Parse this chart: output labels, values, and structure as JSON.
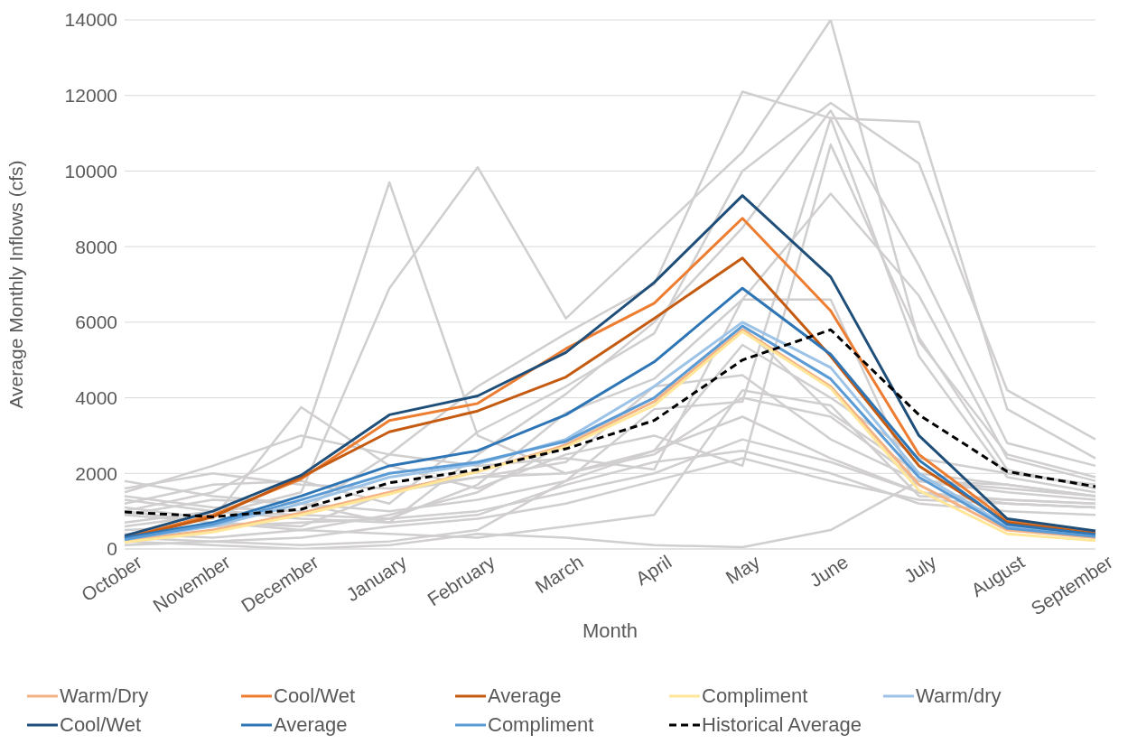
{
  "chart_data": {
    "type": "line",
    "xlabel": "Month",
    "ylabel": "Average Monthly Inflows (cfs)",
    "categories": [
      "October",
      "November",
      "December",
      "January",
      "February",
      "March",
      "April",
      "May",
      "June",
      "July",
      "August",
      "September"
    ],
    "ylim": [
      0,
      14000
    ],
    "yticks": [
      0,
      2000,
      4000,
      6000,
      8000,
      10000,
      12000,
      14000
    ],
    "grid": "y",
    "legend": "bottom",
    "marker": "none",
    "line_style": "solid",
    "series": [
      {
        "color": "#d0cece",
        "values": [
          1000,
          1500,
          2700,
          9700,
          3000,
          2000,
          2500,
          4000,
          3500,
          1800,
          1600,
          1400
        ]
      },
      {
        "color": "#d0cece",
        "values": [
          600,
          900,
          1500,
          6900,
          10100,
          6100,
          8300,
          10500,
          14000,
          5500,
          2500,
          1900
        ]
      },
      {
        "color": "#d0cece",
        "values": [
          1500,
          2200,
          3000,
          2500,
          4300,
          5700,
          7000,
          12100,
          11400,
          11300,
          3700,
          2400
        ]
      },
      {
        "color": "#d0cece",
        "values": [
          1200,
          1700,
          1800,
          1200,
          3100,
          4300,
          5700,
          10000,
          11800,
          10200,
          4200,
          2900
        ]
      },
      {
        "color": "#d0cece",
        "values": [
          900,
          1300,
          1200,
          700,
          2500,
          4100,
          6000,
          8500,
          11600,
          7500,
          2800,
          2200
        ]
      },
      {
        "color": "#d0cece",
        "values": [
          700,
          1000,
          900,
          800,
          1700,
          3600,
          4500,
          6600,
          9400,
          6700,
          2400,
          1800
        ]
      },
      {
        "color": "#d0cece",
        "values": [
          1100,
          800,
          3750,
          2200,
          1600,
          2500,
          3000,
          2200,
          10700,
          5600,
          2100,
          1600
        ]
      },
      {
        "color": "#d0cece",
        "values": [
          300,
          200,
          100,
          200,
          500,
          1800,
          3700,
          3900,
          11400,
          5100,
          1900,
          1500
        ]
      },
      {
        "color": "#d0cece",
        "values": [
          200,
          100,
          0,
          100,
          400,
          300,
          100,
          50,
          500,
          1800,
          1700,
          1400
        ]
      },
      {
        "color": "#d0cece",
        "values": [
          1800,
          1400,
          1200,
          1000,
          1300,
          1800,
          2600,
          3500,
          2400,
          1500,
          1200,
          1100
        ]
      },
      {
        "color": "#d0cece",
        "values": [
          1300,
          1000,
          800,
          700,
          900,
          1700,
          2300,
          2600,
          2000,
          1200,
          1000,
          900
        ]
      },
      {
        "color": "#d0cece",
        "values": [
          500,
          600,
          700,
          800,
          1000,
          1500,
          2000,
          2900,
          2300,
          1500,
          1300,
          1200
        ]
      },
      {
        "color": "#d0cece",
        "values": [
          100,
          200,
          300,
          600,
          800,
          1200,
          1800,
          2400,
          1800,
          1300,
          1200,
          1100
        ]
      },
      {
        "color": "#d0cece",
        "values": [
          400,
          300,
          500,
          400,
          300,
          600,
          900,
          4200,
          3800,
          1400,
          1300,
          1200
        ]
      },
      {
        "color": "#d0cece",
        "values": [
          1400,
          1100,
          1000,
          2500,
          2200,
          2400,
          2100,
          6600,
          6600,
          1500,
          1200,
          1100
        ]
      },
      {
        "color": "#d0cece",
        "values": [
          900,
          700,
          600,
          1500,
          1900,
          2000,
          2600,
          5400,
          4000,
          2400,
          2000,
          1700
        ]
      },
      {
        "color": "#d0cece",
        "values": [
          1600,
          2000,
          1700,
          1600,
          1900,
          2300,
          4300,
          4600,
          2900,
          1800,
          1500,
          1300
        ]
      },
      {
        "color": "#d0cece",
        "values": [
          1000,
          700,
          500,
          900,
          1500,
          2800,
          4000,
          5900,
          3600,
          2000,
          1700,
          1400
        ]
      },
      {
        "name": "Warm/Dry",
        "color": "#f4b183",
        "values": [
          220,
          500,
          950,
          1500,
          2050,
          2750,
          3900,
          5800,
          4300,
          1700,
          500,
          300
        ]
      },
      {
        "name": "Cool/Wet",
        "color": "#ed7d31",
        "values": [
          300,
          900,
          1850,
          3400,
          3850,
          5300,
          6500,
          8750,
          6300,
          2500,
          750,
          420
        ]
      },
      {
        "name": "Average",
        "color": "#c55a11",
        "values": [
          280,
          850,
          1900,
          3100,
          3650,
          4550,
          6100,
          7700,
          5100,
          2200,
          700,
          400
        ]
      },
      {
        "name": "Compliment",
        "color": "#ffe699",
        "values": [
          180,
          450,
          900,
          1450,
          2050,
          2700,
          3800,
          5750,
          4250,
          1550,
          400,
          220
        ]
      },
      {
        "name": "Warm/dry",
        "color": "#9dc3e6",
        "values": [
          250,
          600,
          1200,
          1900,
          2250,
          2900,
          4300,
          6000,
          4800,
          2000,
          600,
          350
        ]
      },
      {
        "name": "Cool/Wet",
        "color": "#1f4e79",
        "values": [
          350,
          1000,
          1950,
          3550,
          4050,
          5200,
          7050,
          9350,
          7200,
          3000,
          800,
          480
        ]
      },
      {
        "name": "Average",
        "color": "#2e75b6",
        "values": [
          300,
          700,
          1400,
          2200,
          2600,
          3550,
          4950,
          6900,
          5150,
          2350,
          650,
          380
        ]
      },
      {
        "name": "Compliment",
        "color": "#5b9bd5",
        "values": [
          250,
          650,
          1300,
          2000,
          2300,
          2850,
          4000,
          5900,
          4500,
          1900,
          550,
          330
        ]
      },
      {
        "name": "Historical Average",
        "color": "#000000",
        "line_style": "dashed",
        "values": [
          980,
          850,
          1050,
          1750,
          2100,
          2650,
          3400,
          5000,
          5800,
          3550,
          2050,
          1650
        ]
      }
    ]
  }
}
